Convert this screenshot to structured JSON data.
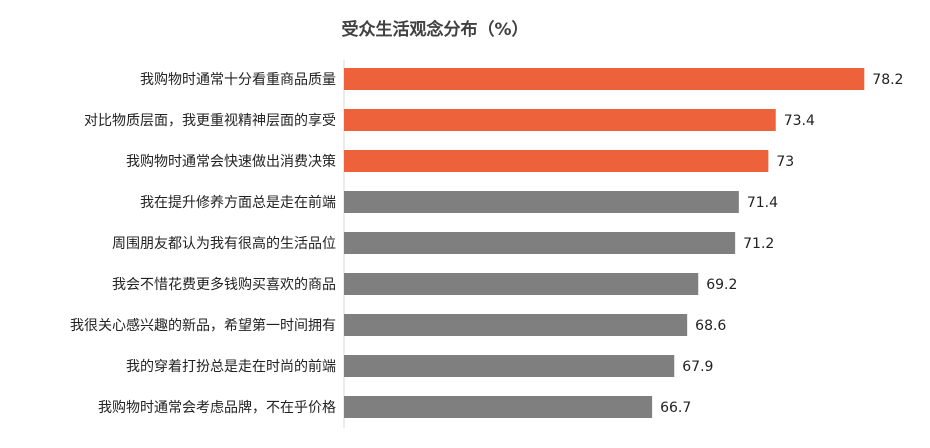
{
  "chart_data": {
    "type": "bar",
    "orientation": "horizontal",
    "title": "受众生活观念分布（%）",
    "categories": [
      "我购物时通常十分看重商品质量",
      "对比物质层面，我更重视精神层面的享受",
      "我购物时通常会快速做出消费决策",
      "我在提升修养方面总是走在前端",
      "周围朋友都认为我有很高的生活品位",
      "我会不惜花费更多钱购买喜欢的商品",
      "我很关心感兴趣的新品，希望第一时间拥有",
      "我的穿着打扮总是走在时尚的前端",
      "我购物时通常会考虑品牌，不在乎价格"
    ],
    "values": [
      78.2,
      73.4,
      73,
      71.4,
      71.2,
      69.2,
      68.6,
      67.9,
      66.7
    ],
    "value_labels": [
      "78.2",
      "73.4",
      "73",
      "71.4",
      "71.2",
      "69.2",
      "68.6",
      "67.9",
      "66.7"
    ],
    "highlight_count": 3,
    "colors": {
      "highlight": "#ED613B",
      "normal": "#7F7F7F"
    },
    "xlim": [
      50,
      80
    ],
    "grid": false,
    "legend": "none"
  }
}
